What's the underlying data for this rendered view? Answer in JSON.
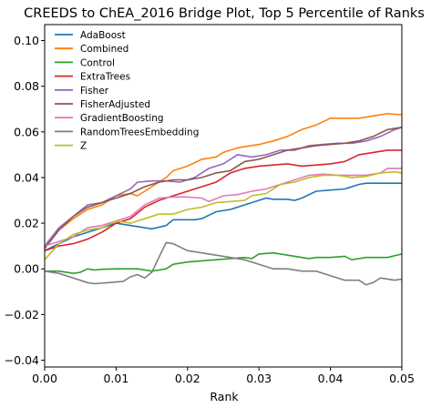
{
  "chart_data": {
    "type": "line",
    "title": "CREEDS to ChEA_2016 Bridge Plot, Top 5 Percentile of Ranks",
    "xlabel": "Rank",
    "ylabel": "",
    "xlim": [
      0,
      0.05
    ],
    "ylim": [
      -0.043,
      0.107
    ],
    "xticks": [
      0.0,
      0.01,
      0.02,
      0.03,
      0.04,
      0.05
    ],
    "xtick_labels": [
      "0.00",
      "0.01",
      "0.02",
      "0.03",
      "0.04",
      "0.05"
    ],
    "yticks": [
      -0.04,
      -0.02,
      0.0,
      0.02,
      0.04,
      0.06,
      0.08,
      0.1
    ],
    "ytick_labels": [
      "−0.04",
      "−0.02",
      "0.00",
      "0.02",
      "0.04",
      "0.06",
      "0.08",
      "0.10"
    ],
    "grid": false,
    "legend_position": "top-left",
    "series": [
      {
        "name": "AdaBoost",
        "color": "#1f77b4",
        "points": [
          [
            0,
            0.008
          ],
          [
            0.002,
            0.011
          ],
          [
            0.004,
            0.014
          ],
          [
            0.006,
            0.016
          ],
          [
            0.008,
            0.018
          ],
          [
            0.01,
            0.02
          ],
          [
            0.012,
            0.019
          ],
          [
            0.014,
            0.018
          ],
          [
            0.015,
            0.0175
          ],
          [
            0.017,
            0.019
          ],
          [
            0.018,
            0.0215
          ],
          [
            0.02,
            0.0215
          ],
          [
            0.021,
            0.0215
          ],
          [
            0.022,
            0.022
          ],
          [
            0.024,
            0.025
          ],
          [
            0.026,
            0.026
          ],
          [
            0.028,
            0.028
          ],
          [
            0.03,
            0.03
          ],
          [
            0.031,
            0.031
          ],
          [
            0.032,
            0.0305
          ],
          [
            0.034,
            0.0305
          ],
          [
            0.035,
            0.03
          ],
          [
            0.036,
            0.031
          ],
          [
            0.038,
            0.034
          ],
          [
            0.04,
            0.0345
          ],
          [
            0.042,
            0.035
          ],
          [
            0.044,
            0.037
          ],
          [
            0.045,
            0.0375
          ],
          [
            0.047,
            0.0375
          ],
          [
            0.05,
            0.0375
          ]
        ]
      },
      {
        "name": "Combined",
        "color": "#ff7f0e",
        "points": [
          [
            0,
            0.009
          ],
          [
            0.002,
            0.017
          ],
          [
            0.004,
            0.022
          ],
          [
            0.006,
            0.026
          ],
          [
            0.008,
            0.028
          ],
          [
            0.009,
            0.03
          ],
          [
            0.01,
            0.032
          ],
          [
            0.012,
            0.033
          ],
          [
            0.013,
            0.032
          ],
          [
            0.015,
            0.036
          ],
          [
            0.017,
            0.04
          ],
          [
            0.018,
            0.043
          ],
          [
            0.02,
            0.045
          ],
          [
            0.022,
            0.048
          ],
          [
            0.024,
            0.049
          ],
          [
            0.025,
            0.051
          ],
          [
            0.027,
            0.053
          ],
          [
            0.028,
            0.0535
          ],
          [
            0.03,
            0.0545
          ],
          [
            0.032,
            0.056
          ],
          [
            0.034,
            0.058
          ],
          [
            0.036,
            0.061
          ],
          [
            0.038,
            0.063
          ],
          [
            0.04,
            0.066
          ],
          [
            0.042,
            0.066
          ],
          [
            0.044,
            0.066
          ],
          [
            0.046,
            0.067
          ],
          [
            0.048,
            0.068
          ],
          [
            0.05,
            0.0675
          ]
        ]
      },
      {
        "name": "Control",
        "color": "#2ca02c",
        "points": [
          [
            0,
            -0.001
          ],
          [
            0.002,
            -0.001
          ],
          [
            0.004,
            -0.002
          ],
          [
            0.005,
            -0.0015
          ],
          [
            0.006,
            0.0
          ],
          [
            0.007,
            -0.0005
          ],
          [
            0.008,
            -0.0002
          ],
          [
            0.01,
            0.0
          ],
          [
            0.012,
            0.0
          ],
          [
            0.013,
            0.0
          ],
          [
            0.015,
            -0.001
          ],
          [
            0.016,
            -0.0005
          ],
          [
            0.017,
            0.0
          ],
          [
            0.018,
            0.002
          ],
          [
            0.02,
            0.003
          ],
          [
            0.022,
            0.0035
          ],
          [
            0.024,
            0.004
          ],
          [
            0.026,
            0.0045
          ],
          [
            0.028,
            0.005
          ],
          [
            0.029,
            0.0045
          ],
          [
            0.03,
            0.0065
          ],
          [
            0.032,
            0.007
          ],
          [
            0.034,
            0.006
          ],
          [
            0.035,
            0.0055
          ],
          [
            0.036,
            0.005
          ],
          [
            0.037,
            0.0045
          ],
          [
            0.038,
            0.005
          ],
          [
            0.04,
            0.005
          ],
          [
            0.042,
            0.0055
          ],
          [
            0.043,
            0.004
          ],
          [
            0.045,
            0.005
          ],
          [
            0.047,
            0.005
          ],
          [
            0.048,
            0.005
          ],
          [
            0.05,
            0.0065
          ]
        ]
      },
      {
        "name": "ExtraTrees",
        "color": "#d62728",
        "points": [
          [
            0,
            0.008
          ],
          [
            0.002,
            0.01
          ],
          [
            0.004,
            0.011
          ],
          [
            0.006,
            0.013
          ],
          [
            0.008,
            0.016
          ],
          [
            0.01,
            0.02
          ],
          [
            0.012,
            0.022
          ],
          [
            0.014,
            0.027
          ],
          [
            0.016,
            0.03
          ],
          [
            0.018,
            0.032
          ],
          [
            0.02,
            0.034
          ],
          [
            0.022,
            0.036
          ],
          [
            0.024,
            0.038
          ],
          [
            0.026,
            0.042
          ],
          [
            0.028,
            0.044
          ],
          [
            0.03,
            0.045
          ],
          [
            0.032,
            0.0455
          ],
          [
            0.034,
            0.046
          ],
          [
            0.036,
            0.045
          ],
          [
            0.038,
            0.0455
          ],
          [
            0.04,
            0.046
          ],
          [
            0.042,
            0.047
          ],
          [
            0.044,
            0.05
          ],
          [
            0.046,
            0.051
          ],
          [
            0.048,
            0.052
          ],
          [
            0.05,
            0.052
          ]
        ]
      },
      {
        "name": "Fisher",
        "color": "#9467bd",
        "points": [
          [
            0,
            0.01
          ],
          [
            0.002,
            0.018
          ],
          [
            0.004,
            0.023
          ],
          [
            0.006,
            0.028
          ],
          [
            0.008,
            0.029
          ],
          [
            0.01,
            0.032
          ],
          [
            0.012,
            0.035
          ],
          [
            0.013,
            0.038
          ],
          [
            0.015,
            0.0385
          ],
          [
            0.017,
            0.0385
          ],
          [
            0.019,
            0.038
          ],
          [
            0.021,
            0.04
          ],
          [
            0.023,
            0.044
          ],
          [
            0.025,
            0.046
          ],
          [
            0.027,
            0.05
          ],
          [
            0.029,
            0.049
          ],
          [
            0.031,
            0.05
          ],
          [
            0.033,
            0.052
          ],
          [
            0.035,
            0.052
          ],
          [
            0.037,
            0.054
          ],
          [
            0.039,
            0.0545
          ],
          [
            0.041,
            0.055
          ],
          [
            0.043,
            0.055
          ],
          [
            0.045,
            0.056
          ],
          [
            0.047,
            0.058
          ],
          [
            0.049,
            0.061
          ],
          [
            0.05,
            0.062
          ]
        ]
      },
      {
        "name": "FisherAdjusted",
        "color": "#8c564b",
        "points": [
          [
            0,
            0.009
          ],
          [
            0.002,
            0.017
          ],
          [
            0.004,
            0.023
          ],
          [
            0.006,
            0.027
          ],
          [
            0.008,
            0.029
          ],
          [
            0.01,
            0.031
          ],
          [
            0.012,
            0.033
          ],
          [
            0.014,
            0.036
          ],
          [
            0.016,
            0.038
          ],
          [
            0.018,
            0.039
          ],
          [
            0.02,
            0.039
          ],
          [
            0.022,
            0.04
          ],
          [
            0.024,
            0.042
          ],
          [
            0.026,
            0.043
          ],
          [
            0.028,
            0.047
          ],
          [
            0.03,
            0.048
          ],
          [
            0.032,
            0.05
          ],
          [
            0.034,
            0.052
          ],
          [
            0.036,
            0.053
          ],
          [
            0.038,
            0.054
          ],
          [
            0.04,
            0.0545
          ],
          [
            0.042,
            0.055
          ],
          [
            0.044,
            0.056
          ],
          [
            0.046,
            0.058
          ],
          [
            0.048,
            0.061
          ],
          [
            0.05,
            0.062
          ]
        ]
      },
      {
        "name": "GradientBoosting",
        "color": "#e377c2",
        "points": [
          [
            0,
            0.01
          ],
          [
            0.002,
            0.012
          ],
          [
            0.004,
            0.014
          ],
          [
            0.006,
            0.018
          ],
          [
            0.008,
            0.019
          ],
          [
            0.01,
            0.021
          ],
          [
            0.012,
            0.023
          ],
          [
            0.014,
            0.028
          ],
          [
            0.016,
            0.031
          ],
          [
            0.018,
            0.0315
          ],
          [
            0.02,
            0.0315
          ],
          [
            0.022,
            0.031
          ],
          [
            0.023,
            0.0295
          ],
          [
            0.025,
            0.032
          ],
          [
            0.027,
            0.0325
          ],
          [
            0.029,
            0.034
          ],
          [
            0.031,
            0.035
          ],
          [
            0.033,
            0.037
          ],
          [
            0.035,
            0.039
          ],
          [
            0.037,
            0.041
          ],
          [
            0.039,
            0.0415
          ],
          [
            0.041,
            0.041
          ],
          [
            0.043,
            0.041
          ],
          [
            0.045,
            0.041
          ],
          [
            0.047,
            0.042
          ],
          [
            0.048,
            0.044
          ],
          [
            0.05,
            0.044
          ]
        ]
      },
      {
        "name": "RandomTreesEmbedding",
        "color": "#7f7f7f",
        "points": [
          [
            0,
            -0.001
          ],
          [
            0.002,
            -0.002
          ],
          [
            0.004,
            -0.004
          ],
          [
            0.006,
            -0.006
          ],
          [
            0.007,
            -0.0065
          ],
          [
            0.009,
            -0.006
          ],
          [
            0.011,
            -0.0055
          ],
          [
            0.012,
            -0.0035
          ],
          [
            0.013,
            -0.0025
          ],
          [
            0.014,
            -0.004
          ],
          [
            0.015,
            -0.0015
          ],
          [
            0.016,
            0.005
          ],
          [
            0.017,
            0.0115
          ],
          [
            0.018,
            0.011
          ],
          [
            0.02,
            0.008
          ],
          [
            0.022,
            0.007
          ],
          [
            0.024,
            0.006
          ],
          [
            0.026,
            0.005
          ],
          [
            0.028,
            0.004
          ],
          [
            0.03,
            0.002
          ],
          [
            0.032,
            0.0
          ],
          [
            0.034,
            0.0
          ],
          [
            0.036,
            -0.001
          ],
          [
            0.038,
            -0.001
          ],
          [
            0.04,
            -0.003
          ],
          [
            0.042,
            -0.005
          ],
          [
            0.044,
            -0.005
          ],
          [
            0.045,
            -0.007
          ],
          [
            0.046,
            -0.006
          ],
          [
            0.047,
            -0.004
          ],
          [
            0.049,
            -0.005
          ],
          [
            0.05,
            -0.0045
          ]
        ]
      },
      {
        "name": "Z",
        "color": "#bcbd22",
        "points": [
          [
            0,
            0.004
          ],
          [
            0.002,
            0.011
          ],
          [
            0.004,
            0.015
          ],
          [
            0.006,
            0.017
          ],
          [
            0.008,
            0.018
          ],
          [
            0.01,
            0.021
          ],
          [
            0.012,
            0.02
          ],
          [
            0.014,
            0.022
          ],
          [
            0.016,
            0.024
          ],
          [
            0.018,
            0.024
          ],
          [
            0.02,
            0.026
          ],
          [
            0.022,
            0.027
          ],
          [
            0.024,
            0.029
          ],
          [
            0.026,
            0.0295
          ],
          [
            0.028,
            0.03
          ],
          [
            0.029,
            0.032
          ],
          [
            0.031,
            0.033
          ],
          [
            0.033,
            0.037
          ],
          [
            0.035,
            0.038
          ],
          [
            0.037,
            0.04
          ],
          [
            0.039,
            0.041
          ],
          [
            0.041,
            0.041
          ],
          [
            0.043,
            0.04
          ],
          [
            0.045,
            0.0405
          ],
          [
            0.047,
            0.042
          ],
          [
            0.049,
            0.0425
          ],
          [
            0.05,
            0.042
          ]
        ]
      }
    ]
  }
}
